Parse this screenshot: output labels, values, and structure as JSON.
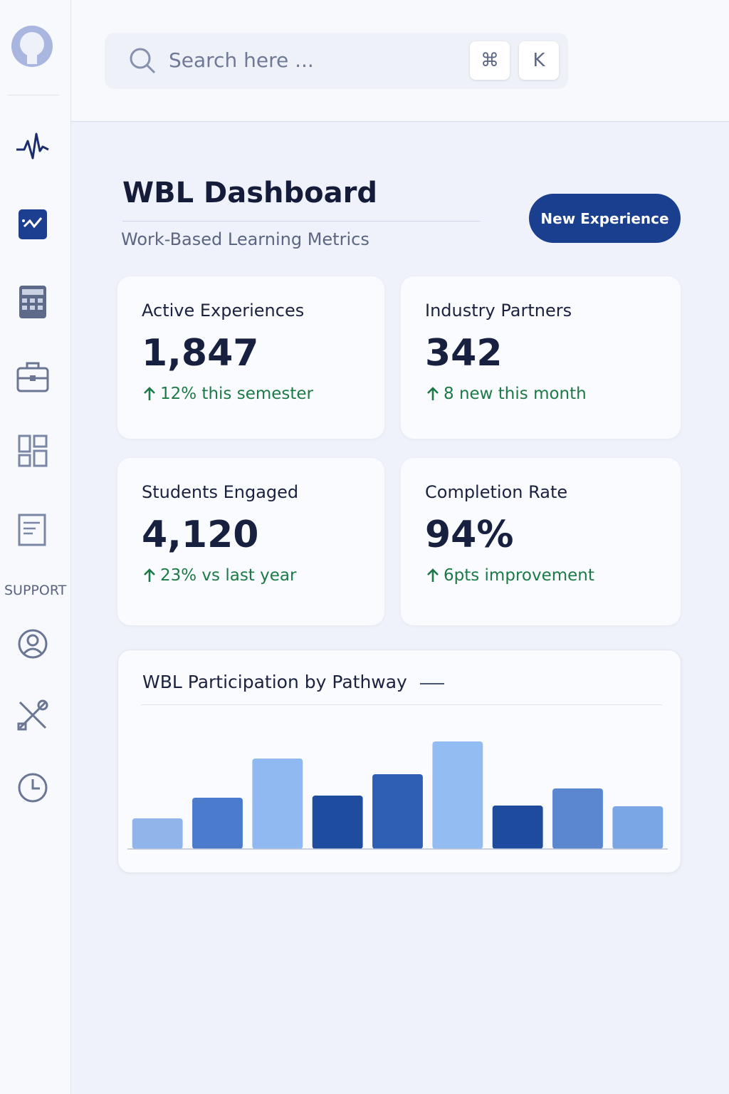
{
  "search": {
    "placeholder": "Search here ...",
    "keys": [
      "⌘",
      "K"
    ]
  },
  "sidebar": {
    "section_label": "SUPPORT"
  },
  "header": {
    "title": "WBL Dashboard",
    "subtitle": "Work-Based Learning Metrics",
    "button": "New Experience"
  },
  "cards": [
    {
      "label": "Active Experiences",
      "value": "1,847",
      "change": "12% this semester"
    },
    {
      "label": "Industry Partners",
      "value": "342",
      "change": "8 new this month"
    },
    {
      "label": "Students Engaged",
      "value": "4,120",
      "change": "23% vs last year"
    },
    {
      "label": "Completion Rate",
      "value": "94%",
      "change": "6pts improvement"
    }
  ],
  "chart_data": {
    "type": "bar",
    "title": "WBL Participation by Pathway",
    "categories": [
      null,
      null,
      null,
      null,
      null,
      null,
      null,
      null,
      null
    ],
    "values": [
      43,
      72,
      127,
      75,
      105,
      151,
      61,
      85,
      60
    ],
    "colors": [
      "#8fb5ea",
      "#4a7bcc",
      "#8fb9f0",
      "#1e4c9f",
      "#2e5fb5",
      "#93bdf2",
      "#1e4b9e",
      "#5a87d0",
      "#7aa6e6"
    ],
    "ylim": [
      0,
      160
    ]
  }
}
